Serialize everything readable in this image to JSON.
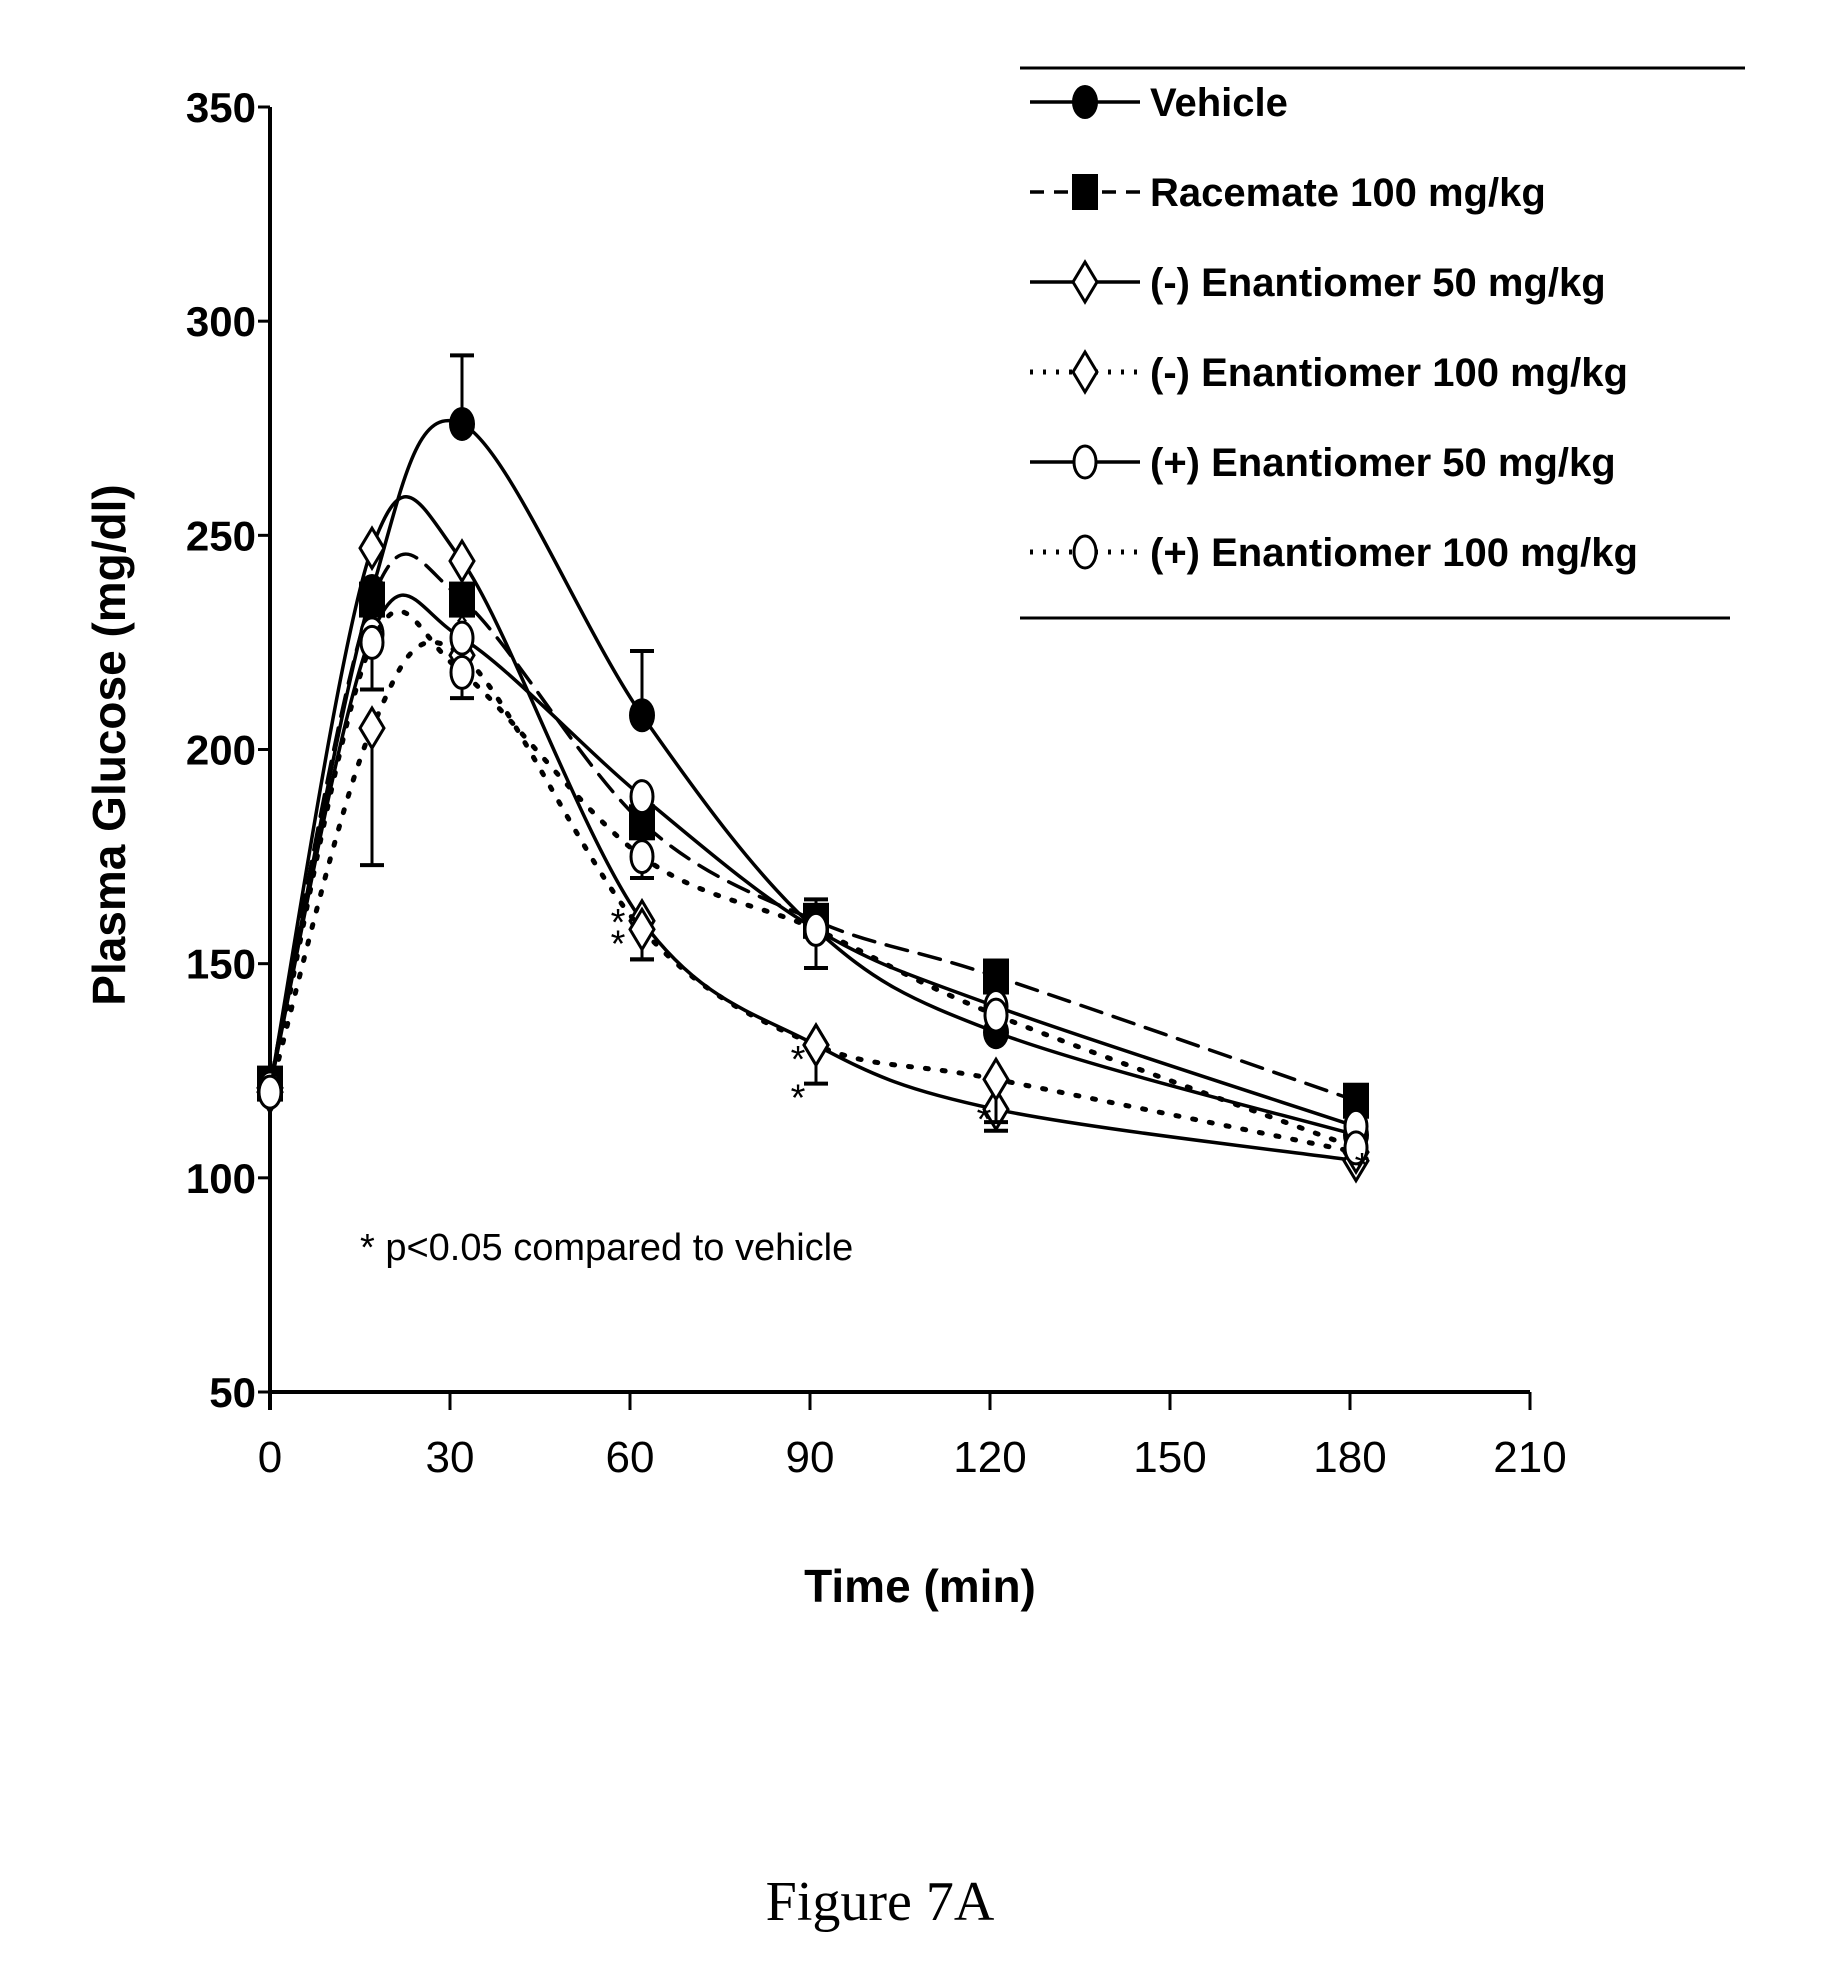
{
  "caption": "Figure 7A",
  "chart_data": {
    "type": "line",
    "title": "",
    "xlabel": "Time (min)",
    "ylabel": "Plasma Glucose (mg/dl)",
    "xlim": [
      0,
      210
    ],
    "ylim": [
      50,
      350
    ],
    "x_ticks": [
      0,
      30,
      60,
      90,
      120,
      150,
      180,
      210
    ],
    "y_ticks": [
      50,
      100,
      150,
      200,
      250,
      300,
      350
    ],
    "x_tick_labels": [
      "0",
      "30",
      "60",
      "90",
      "120",
      "150",
      "180",
      "210"
    ],
    "y_tick_labels": [
      "50",
      "100",
      "150",
      "200",
      "250",
      "300",
      "350"
    ],
    "grid": false,
    "legend_position": "top-right",
    "annotation": "* p<0.05 compared to vehicle",
    "x": [
      0,
      17,
      32,
      62,
      91,
      121,
      181
    ],
    "series": [
      {
        "name": "Vehicle",
        "marker": "filled-circle",
        "line_style": "solid",
        "values": [
          121,
          237,
          276,
          208,
          158,
          134,
          110
        ],
        "error_upper": [
          null,
          null,
          292,
          223,
          165,
          null,
          null
        ]
      },
      {
        "name": "Racemate 100 mg/kg",
        "marker": "filled-square",
        "line_style": "dashed",
        "values": [
          122,
          235,
          235,
          183,
          160,
          147,
          118
        ],
        "error_upper": [
          null,
          null,
          null,
          null,
          null,
          null,
          null
        ]
      },
      {
        "name": "(-) Enantiomer 50 mg/kg",
        "marker": "open-diamond",
        "line_style": "solid",
        "values": [
          121,
          247,
          244,
          160,
          131,
          116,
          104
        ],
        "error_lower": [
          null,
          null,
          null,
          151,
          null,
          111,
          null
        ]
      },
      {
        "name": "(-) Enantiomer 100 mg/kg",
        "marker": "open-diamond",
        "line_style": "dotted",
        "values": [
          120,
          205,
          222,
          158,
          131,
          123,
          106
        ],
        "error_lower": [
          null,
          173,
          212,
          151,
          122,
          113,
          null
        ]
      },
      {
        "name": "(+) Enantiomer 50 mg/kg",
        "marker": "open-circle",
        "line_style": "solid",
        "values": [
          121,
          227,
          226,
          189,
          158,
          140,
          112
        ],
        "error_lower": [
          null,
          214,
          null,
          null,
          149,
          null,
          null
        ]
      },
      {
        "name": "(+) Enantiomer 100 mg/kg",
        "marker": "open-circle",
        "line_style": "dotted",
        "values": [
          120,
          225,
          218,
          175,
          158,
          138,
          107
        ],
        "error_lower": [
          null,
          null,
          null,
          170,
          null,
          null,
          null
        ]
      }
    ],
    "significance_markers": [
      {
        "x": 32,
        "y": 230,
        "label": "*"
      },
      {
        "x": 58,
        "y": 160,
        "label": "*"
      },
      {
        "x": 58,
        "y": 155,
        "label": "*"
      },
      {
        "x": 88,
        "y": 128,
        "label": "*"
      },
      {
        "x": 88,
        "y": 119,
        "label": "*"
      },
      {
        "x": 119,
        "y": 114,
        "label": "*"
      },
      {
        "x": 182,
        "y": 103,
        "label": "*"
      }
    ]
  }
}
